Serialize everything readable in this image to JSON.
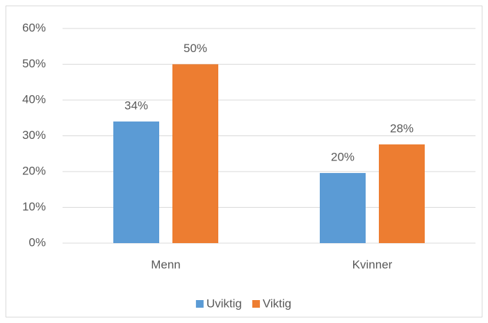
{
  "chart_data": {
    "type": "bar",
    "categories": [
      "Menn",
      "Kvinner"
    ],
    "series": [
      {
        "name": "Uviktig",
        "color": "#5b9bd5",
        "values": [
          34,
          19.6
        ],
        "value_labels": [
          "34%",
          "20%"
        ]
      },
      {
        "name": "Viktig",
        "color": "#ed7d31",
        "values": [
          50,
          27.6
        ],
        "value_labels": [
          "50%",
          "28%"
        ]
      }
    ],
    "ylim": [
      0,
      60
    ],
    "yticks": [
      {
        "value": 0,
        "label": "0%"
      },
      {
        "value": 10,
        "label": "10%"
      },
      {
        "value": 20,
        "label": "20%"
      },
      {
        "value": 30,
        "label": "30%"
      },
      {
        "value": 40,
        "label": "40%"
      },
      {
        "value": 50,
        "label": "50%"
      },
      {
        "value": 60,
        "label": "60%"
      }
    ],
    "grid": true,
    "legend": "bottom"
  }
}
